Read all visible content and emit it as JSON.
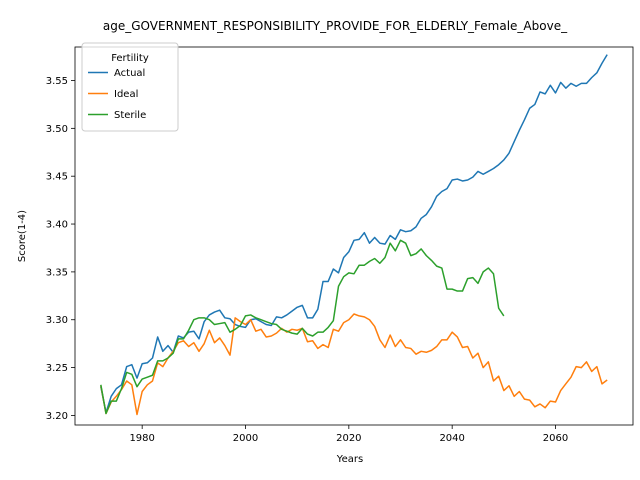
{
  "chart_data": {
    "type": "line",
    "title": "age_GOVERNMENT_RESPONSIBILITY_PROVIDE_FOR_ELDERLY_Female_Above_",
    "xlabel": "Years",
    "ylabel": "Score(1-4)",
    "xlim": [
      1967,
      2075
    ],
    "ylim": [
      3.19,
      3.585
    ],
    "xticks": [
      1980,
      2000,
      2020,
      2040,
      2060
    ],
    "yticks": [
      3.2,
      3.25,
      3.3,
      3.35,
      3.4,
      3.45,
      3.5,
      3.55
    ],
    "grid": false,
    "legend": {
      "title": "Fertility",
      "position": "top-left"
    },
    "series": [
      {
        "name": "Actual",
        "color": "#1f77b4",
        "points": [
          [
            1972,
            3.23
          ],
          [
            1973,
            3.203
          ],
          [
            1974,
            3.22
          ],
          [
            1975,
            3.228
          ],
          [
            1976,
            3.232
          ],
          [
            1977,
            3.251
          ],
          [
            1978,
            3.253
          ],
          [
            1979,
            3.239
          ],
          [
            1980,
            3.254
          ],
          [
            1981,
            3.255
          ],
          [
            1982,
            3.26
          ],
          [
            1983,
            3.282
          ],
          [
            1984,
            3.267
          ],
          [
            1985,
            3.273
          ],
          [
            1986,
            3.266
          ],
          [
            1987,
            3.283
          ],
          [
            1988,
            3.281
          ],
          [
            1989,
            3.287
          ],
          [
            1990,
            3.288
          ],
          [
            1991,
            3.28
          ],
          [
            1992,
            3.298
          ],
          [
            1993,
            3.305
          ],
          [
            1994,
            3.308
          ],
          [
            1995,
            3.31
          ],
          [
            1996,
            3.302
          ],
          [
            1997,
            3.301
          ],
          [
            1998,
            3.295
          ],
          [
            1999,
            3.293
          ],
          [
            2000,
            3.292
          ],
          [
            2001,
            3.3
          ],
          [
            2002,
            3.301
          ],
          [
            2003,
            3.298
          ],
          [
            2004,
            3.295
          ],
          [
            2005,
            3.294
          ],
          [
            2006,
            3.303
          ],
          [
            2007,
            3.302
          ],
          [
            2008,
            3.305
          ],
          [
            2009,
            3.309
          ],
          [
            2010,
            3.313
          ],
          [
            2011,
            3.315
          ],
          [
            2012,
            3.302
          ],
          [
            2013,
            3.302
          ],
          [
            2014,
            3.311
          ],
          [
            2015,
            3.34
          ],
          [
            2016,
            3.34
          ],
          [
            2017,
            3.353
          ],
          [
            2018,
            3.349
          ],
          [
            2019,
            3.365
          ],
          [
            2020,
            3.371
          ],
          [
            2021,
            3.383
          ],
          [
            2022,
            3.384
          ],
          [
            2023,
            3.391
          ],
          [
            2024,
            3.38
          ],
          [
            2025,
            3.386
          ],
          [
            2026,
            3.38
          ],
          [
            2027,
            3.379
          ],
          [
            2028,
            3.388
          ],
          [
            2029,
            3.384
          ],
          [
            2030,
            3.394
          ],
          [
            2031,
            3.392
          ],
          [
            2032,
            3.393
          ],
          [
            2033,
            3.397
          ],
          [
            2034,
            3.406
          ],
          [
            2035,
            3.41
          ],
          [
            2036,
            3.418
          ],
          [
            2037,
            3.429
          ],
          [
            2038,
            3.434
          ],
          [
            2039,
            3.437
          ],
          [
            2040,
            3.446
          ],
          [
            2041,
            3.447
          ],
          [
            2042,
            3.445
          ],
          [
            2043,
            3.446
          ],
          [
            2044,
            3.449
          ],
          [
            2045,
            3.455
          ],
          [
            2046,
            3.452
          ],
          [
            2047,
            3.455
          ],
          [
            2048,
            3.458
          ],
          [
            2049,
            3.462
          ],
          [
            2050,
            3.467
          ],
          [
            2051,
            3.474
          ],
          [
            2052,
            3.486
          ],
          [
            2053,
            3.498
          ],
          [
            2054,
            3.509
          ],
          [
            2055,
            3.521
          ],
          [
            2056,
            3.525
          ],
          [
            2057,
            3.538
          ],
          [
            2058,
            3.536
          ],
          [
            2059,
            3.545
          ],
          [
            2060,
            3.537
          ],
          [
            2061,
            3.548
          ],
          [
            2062,
            3.542
          ],
          [
            2063,
            3.547
          ],
          [
            2064,
            3.544
          ],
          [
            2065,
            3.547
          ],
          [
            2066,
            3.547
          ],
          [
            2067,
            3.553
          ],
          [
            2068,
            3.558
          ],
          [
            2069,
            3.568
          ],
          [
            2070,
            3.577
          ]
        ]
      },
      {
        "name": "Ideal",
        "color": "#ff7f0e",
        "points": [
          [
            1972,
            3.231
          ],
          [
            1973,
            3.202
          ],
          [
            1974,
            3.214
          ],
          [
            1975,
            3.22
          ],
          [
            1976,
            3.227
          ],
          [
            1977,
            3.236
          ],
          [
            1978,
            3.232
          ],
          [
            1979,
            3.201
          ],
          [
            1980,
            3.225
          ],
          [
            1981,
            3.232
          ],
          [
            1982,
            3.236
          ],
          [
            1983,
            3.255
          ],
          [
            1984,
            3.251
          ],
          [
            1985,
            3.26
          ],
          [
            1986,
            3.267
          ],
          [
            1987,
            3.276
          ],
          [
            1988,
            3.278
          ],
          [
            1989,
            3.272
          ],
          [
            1990,
            3.276
          ],
          [
            1991,
            3.267
          ],
          [
            1992,
            3.275
          ],
          [
            1993,
            3.289
          ],
          [
            1994,
            3.276
          ],
          [
            1995,
            3.281
          ],
          [
            1996,
            3.273
          ],
          [
            1997,
            3.263
          ],
          [
            1998,
            3.302
          ],
          [
            1999,
            3.298
          ],
          [
            2000,
            3.295
          ],
          [
            2001,
            3.3
          ],
          [
            2002,
            3.288
          ],
          [
            2003,
            3.29
          ],
          [
            2004,
            3.282
          ],
          [
            2005,
            3.283
          ],
          [
            2006,
            3.286
          ],
          [
            2007,
            3.291
          ],
          [
            2008,
            3.287
          ],
          [
            2009,
            3.29
          ],
          [
            2010,
            3.289
          ],
          [
            2011,
            3.291
          ],
          [
            2012,
            3.277
          ],
          [
            2013,
            3.278
          ],
          [
            2014,
            3.27
          ],
          [
            2015,
            3.274
          ],
          [
            2016,
            3.271
          ],
          [
            2017,
            3.29
          ],
          [
            2018,
            3.288
          ],
          [
            2019,
            3.297
          ],
          [
            2020,
            3.3
          ],
          [
            2021,
            3.306
          ],
          [
            2022,
            3.304
          ],
          [
            2023,
            3.303
          ],
          [
            2024,
            3.3
          ],
          [
            2025,
            3.293
          ],
          [
            2026,
            3.279
          ],
          [
            2027,
            3.271
          ],
          [
            2028,
            3.284
          ],
          [
            2029,
            3.272
          ],
          [
            2030,
            3.279
          ],
          [
            2031,
            3.271
          ],
          [
            2032,
            3.27
          ],
          [
            2033,
            3.264
          ],
          [
            2034,
            3.267
          ],
          [
            2035,
            3.266
          ],
          [
            2036,
            3.268
          ],
          [
            2037,
            3.272
          ],
          [
            2038,
            3.279
          ],
          [
            2039,
            3.279
          ],
          [
            2040,
            3.287
          ],
          [
            2041,
            3.282
          ],
          [
            2042,
            3.271
          ],
          [
            2043,
            3.272
          ],
          [
            2044,
            3.26
          ],
          [
            2045,
            3.265
          ],
          [
            2046,
            3.25
          ],
          [
            2047,
            3.256
          ],
          [
            2048,
            3.236
          ],
          [
            2049,
            3.241
          ],
          [
            2050,
            3.226
          ],
          [
            2051,
            3.231
          ],
          [
            2052,
            3.22
          ],
          [
            2053,
            3.225
          ],
          [
            2054,
            3.217
          ],
          [
            2055,
            3.216
          ],
          [
            2056,
            3.209
          ],
          [
            2057,
            3.212
          ],
          [
            2058,
            3.208
          ],
          [
            2059,
            3.215
          ],
          [
            2060,
            3.214
          ],
          [
            2061,
            3.226
          ],
          [
            2062,
            3.233
          ],
          [
            2063,
            3.24
          ],
          [
            2064,
            3.251
          ],
          [
            2065,
            3.25
          ],
          [
            2066,
            3.256
          ],
          [
            2067,
            3.246
          ],
          [
            2068,
            3.251
          ],
          [
            2069,
            3.233
          ],
          [
            2070,
            3.237
          ]
        ]
      },
      {
        "name": "Sterile",
        "color": "#2ca02c",
        "points": [
          [
            1972,
            3.232
          ],
          [
            1973,
            3.202
          ],
          [
            1974,
            3.215
          ],
          [
            1975,
            3.215
          ],
          [
            1976,
            3.228
          ],
          [
            1977,
            3.245
          ],
          [
            1978,
            3.243
          ],
          [
            1979,
            3.23
          ],
          [
            1980,
            3.238
          ],
          [
            1981,
            3.24
          ],
          [
            1982,
            3.242
          ],
          [
            1983,
            3.257
          ],
          [
            1984,
            3.257
          ],
          [
            1985,
            3.26
          ],
          [
            1986,
            3.265
          ],
          [
            1987,
            3.28
          ],
          [
            1988,
            3.28
          ],
          [
            1989,
            3.289
          ],
          [
            1990,
            3.3
          ],
          [
            1991,
            3.302
          ],
          [
            1992,
            3.302
          ],
          [
            1993,
            3.3
          ],
          [
            1994,
            3.295
          ],
          [
            1995,
            3.296
          ],
          [
            1996,
            3.297
          ],
          [
            1997,
            3.287
          ],
          [
            1998,
            3.29
          ],
          [
            1999,
            3.294
          ],
          [
            2000,
            3.304
          ],
          [
            2001,
            3.305
          ],
          [
            2002,
            3.302
          ],
          [
            2003,
            3.3
          ],
          [
            2004,
            3.298
          ],
          [
            2005,
            3.296
          ],
          [
            2006,
            3.295
          ],
          [
            2007,
            3.29
          ],
          [
            2008,
            3.288
          ],
          [
            2009,
            3.286
          ],
          [
            2010,
            3.285
          ],
          [
            2011,
            3.291
          ],
          [
            2012,
            3.285
          ],
          [
            2013,
            3.283
          ],
          [
            2014,
            3.287
          ],
          [
            2015,
            3.287
          ],
          [
            2016,
            3.292
          ],
          [
            2017,
            3.299
          ],
          [
            2018,
            3.335
          ],
          [
            2019,
            3.345
          ],
          [
            2020,
            3.349
          ],
          [
            2021,
            3.348
          ],
          [
            2022,
            3.357
          ],
          [
            2023,
            3.357
          ],
          [
            2024,
            3.361
          ],
          [
            2025,
            3.364
          ],
          [
            2026,
            3.359
          ],
          [
            2027,
            3.365
          ],
          [
            2028,
            3.38
          ],
          [
            2029,
            3.372
          ],
          [
            2030,
            3.383
          ],
          [
            2031,
            3.38
          ],
          [
            2032,
            3.367
          ],
          [
            2033,
            3.369
          ],
          [
            2034,
            3.374
          ],
          [
            2035,
            3.367
          ],
          [
            2036,
            3.362
          ],
          [
            2037,
            3.356
          ],
          [
            2038,
            3.354
          ],
          [
            2039,
            3.332
          ],
          [
            2040,
            3.332
          ],
          [
            2041,
            3.33
          ],
          [
            2042,
            3.33
          ],
          [
            2043,
            3.343
          ],
          [
            2044,
            3.344
          ],
          [
            2045,
            3.338
          ],
          [
            2046,
            3.35
          ],
          [
            2047,
            3.354
          ],
          [
            2048,
            3.348
          ],
          [
            2049,
            3.312
          ],
          [
            2050,
            3.304
          ]
        ]
      }
    ]
  }
}
